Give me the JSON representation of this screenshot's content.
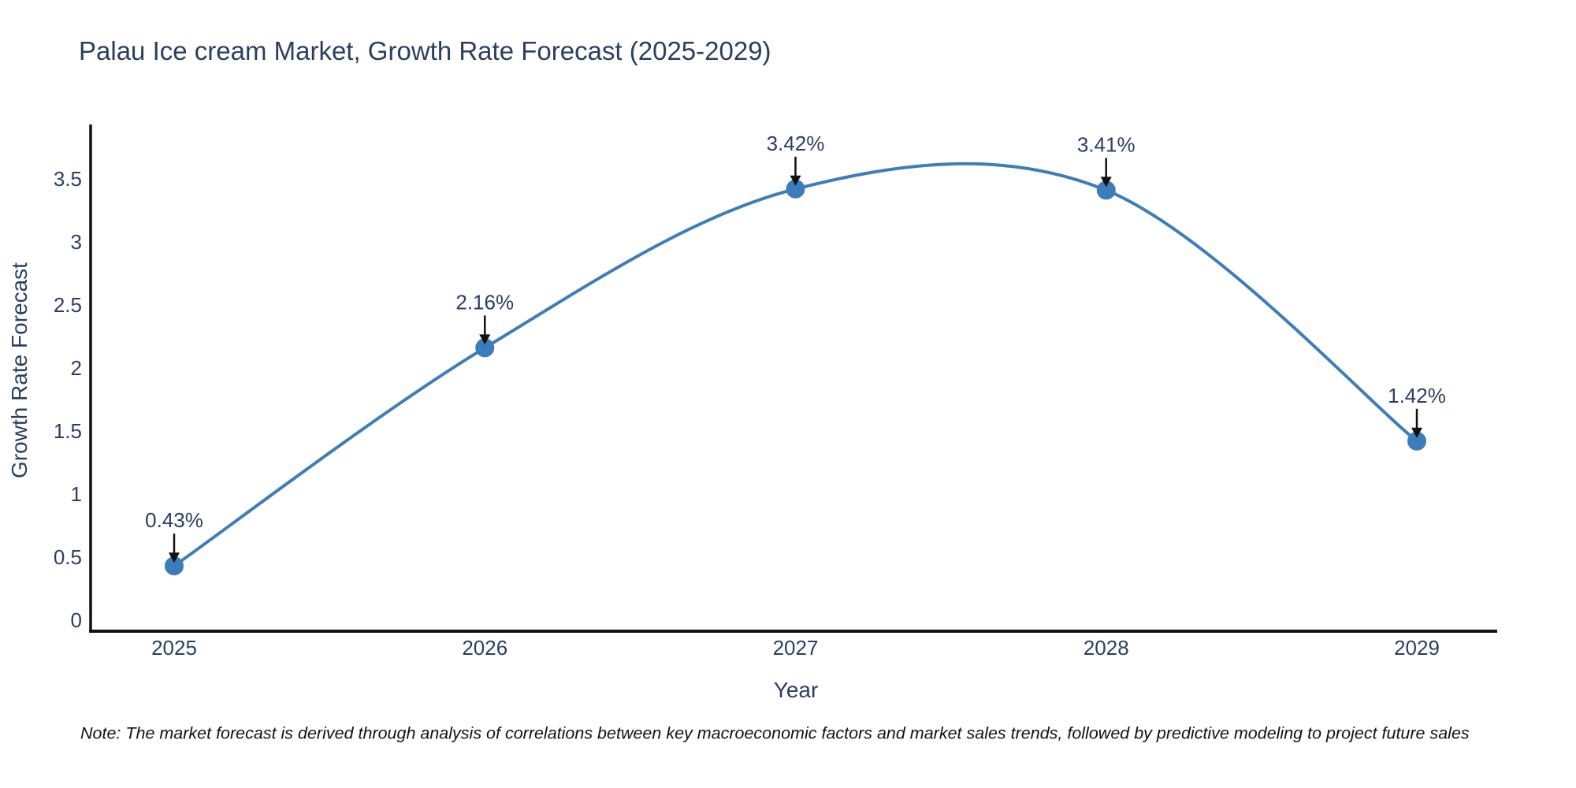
{
  "chart": {
    "title": "Palau Ice cream Market, Growth Rate Forecast (2025-2029)",
    "x_axis_title": "Year",
    "y_axis_title": "Growth Rate Forecast",
    "note": "Note: The market forecast is derived through analysis of correlations between key macroeconomic factors and market sales trends, followed by predictive modeling to project future sales"
  },
  "chart_data": {
    "type": "line",
    "line_shape": "spline",
    "title": "Palau Ice cream Market, Growth Rate Forecast (2025-2029)",
    "xlabel": "Year",
    "ylabel": "Growth Rate Forecast",
    "x": [
      2025,
      2026,
      2027,
      2028,
      2029
    ],
    "series": [
      {
        "name": "Growth Rate Forecast",
        "values": [
          0.43,
          2.16,
          3.42,
          3.41,
          1.42
        ],
        "point_labels": [
          "0.43%",
          "2.16%",
          "3.42%",
          "3.41%",
          "1.42%"
        ]
      }
    ],
    "x_ticks": [
      "2025",
      "2026",
      "2027",
      "2028",
      "2029"
    ],
    "y_ticks": [
      0,
      0.5,
      1,
      1.5,
      2,
      2.5,
      3,
      3.5
    ],
    "ylim": [
      -0.11,
      3.92
    ],
    "grid": false,
    "legend": "none",
    "annotations": "arrow-down-to-point",
    "colors": {
      "line": "#3e7db8",
      "marker": "#3d7cba",
      "axis_line": "#111111",
      "tick_text": "#2a3f5f",
      "annotation_text": "#2a3f5f",
      "annotation_arrow": "#111111",
      "title_text": "#2a3f5f"
    }
  }
}
